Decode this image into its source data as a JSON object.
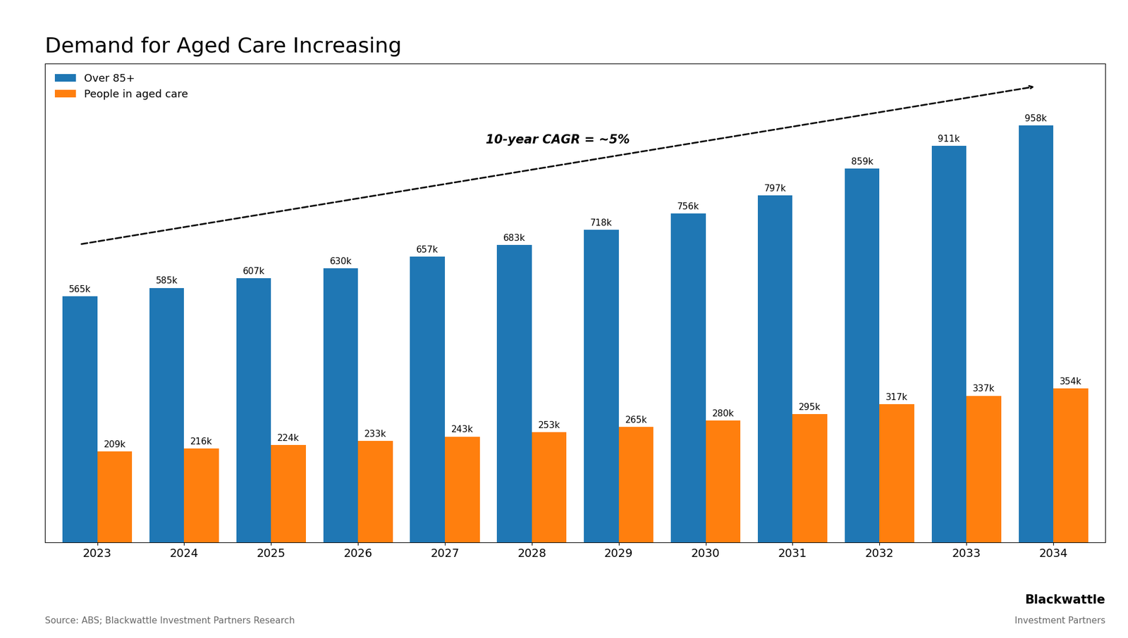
{
  "chart_data": {
    "type": "bar",
    "title": "Demand for Aged Care Increasing",
    "categories": [
      "2023",
      "2024",
      "2025",
      "2026",
      "2027",
      "2028",
      "2029",
      "2030",
      "2031",
      "2032",
      "2033",
      "2034"
    ],
    "series": [
      {
        "name": "Over 85+",
        "values": [
          565,
          585,
          607,
          630,
          657,
          683,
          718,
          756,
          797,
          859,
          911,
          958
        ],
        "value_labels": [
          "565k",
          "585k",
          "607k",
          "630k",
          "657k",
          "683k",
          "718k",
          "756k",
          "797k",
          "859k",
          "911k",
          "958k"
        ]
      },
      {
        "name": "People in aged care",
        "values": [
          209,
          216,
          224,
          233,
          243,
          253,
          265,
          280,
          295,
          317,
          337,
          354
        ],
        "value_labels": [
          "209k",
          "216k",
          "224k",
          "233k",
          "243k",
          "253k",
          "265k",
          "280k",
          "295k",
          "317k",
          "337k",
          "354k"
        ]
      }
    ],
    "ylim": [
      0,
      1100
    ],
    "tick_labels": "x",
    "data_labels": true,
    "grid": false,
    "legend": "upper left",
    "annotations": [
      "10-year CAGR = ~5%",
      "Source: ABS; Blackwattle Investment Partners Research",
      "Blackwattle",
      "Investment Partners"
    ]
  }
}
